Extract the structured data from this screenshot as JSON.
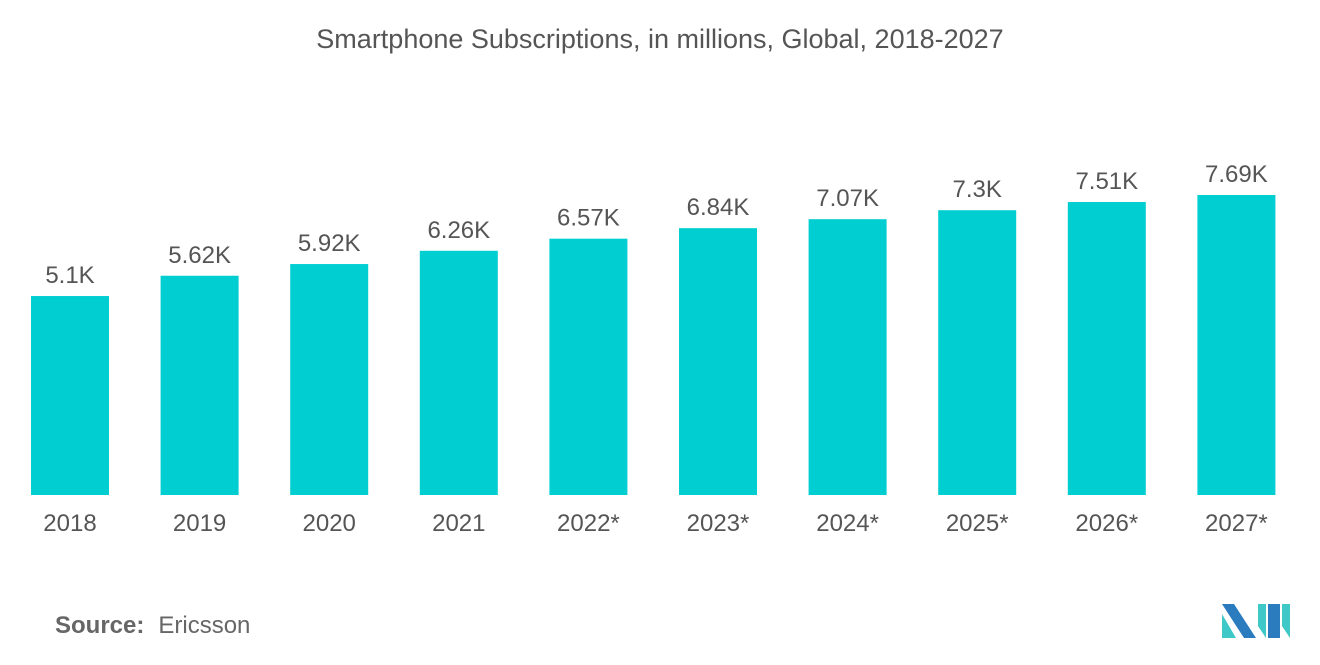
{
  "chart_data": {
    "type": "bar",
    "title": "Smartphone Subscriptions, in millions, Global, 2018-2027",
    "categories": [
      "2018",
      "2019",
      "2020",
      "2021",
      "2022*",
      "2023*",
      "2024*",
      "2025*",
      "2026*",
      "2027*"
    ],
    "values": [
      5100,
      5620,
      5920,
      6260,
      6570,
      6840,
      7070,
      7300,
      7510,
      7690
    ],
    "data_labels": [
      "5.1K",
      "5.62K",
      "5.92K",
      "6.26K",
      "6.57K",
      "6.84K",
      "7.07K",
      "7.3K",
      "7.51K",
      "7.69K"
    ],
    "xlabel": "",
    "ylabel": "",
    "ylim": [
      0,
      7690
    ],
    "grid": false,
    "bar_color": "#00CED1"
  },
  "source": {
    "label": "Source:",
    "value": "Ericsson"
  },
  "logo": {
    "colors": [
      "#2B7BBF",
      "#3EC8C8"
    ]
  }
}
